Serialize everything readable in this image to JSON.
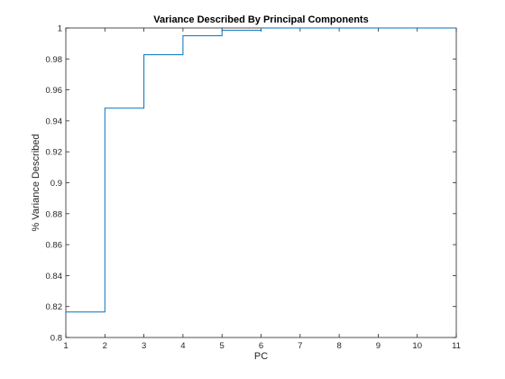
{
  "chart_data": {
    "type": "line",
    "step": "post",
    "title": "Variance Described By Principal Components",
    "xlabel": "PC",
    "ylabel": "% Variance Described",
    "xlim": [
      1,
      11
    ],
    "ylim": [
      0.8,
      1
    ],
    "xticks": [
      1,
      2,
      3,
      4,
      5,
      6,
      7,
      8,
      9,
      10,
      11
    ],
    "yticks": [
      0.8,
      0.82,
      0.84,
      0.86,
      0.88,
      0.9,
      0.92,
      0.94,
      0.96,
      0.98,
      1
    ],
    "ytick_labels": [
      "0.8",
      "0.82",
      "0.84",
      "0.86",
      "0.88",
      "0.9",
      "0.92",
      "0.94",
      "0.96",
      "0.98",
      "1"
    ],
    "grid": false,
    "box": true,
    "series": [
      {
        "color": "#0072bd",
        "x": [
          1,
          2,
          3,
          4,
          5,
          6,
          7,
          8,
          9,
          10,
          11
        ],
        "y": [
          0.8165,
          0.9482,
          0.9827,
          0.995,
          0.9985,
          1.0,
          1.0,
          1.0,
          1.0,
          1.0,
          1.0
        ]
      }
    ]
  }
}
